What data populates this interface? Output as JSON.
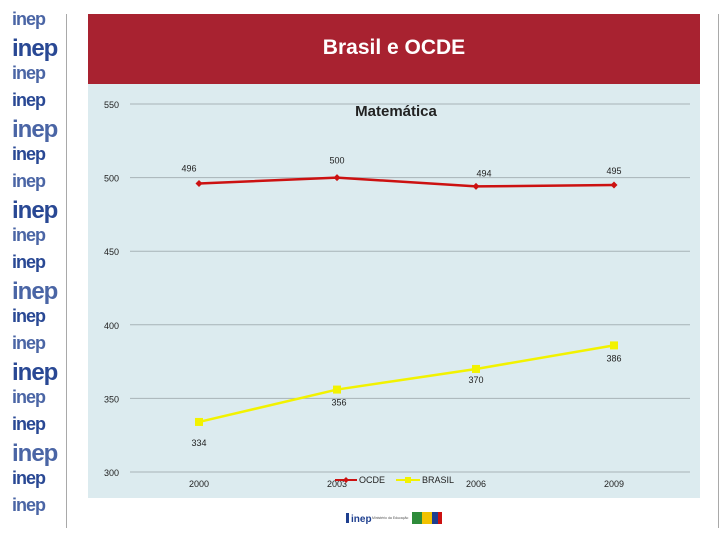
{
  "slide": {
    "title": "Brasil e OCDE",
    "sidebar_watermark": "inep"
  },
  "chart_data": {
    "type": "line",
    "title": "Matemática",
    "xlabel": "",
    "ylabel": "",
    "categories": [
      "2000",
      "2003",
      "2006",
      "2009"
    ],
    "ylim": [
      300,
      550
    ],
    "yticks": [
      300,
      350,
      400,
      450,
      500,
      550
    ],
    "grid": true,
    "legend_position": "bottom-center",
    "series": [
      {
        "name": "OCDE",
        "values": [
          496,
          500,
          494,
          495
        ],
        "color": "#cc1111"
      },
      {
        "name": "BRASIL",
        "values": [
          334,
          356,
          370,
          386
        ],
        "color": "#f2f200"
      }
    ]
  },
  "footer": {
    "logo_text": "inep",
    "ministry_text": "Ministério da Educação",
    "accent_colors": [
      "#1e3f8f",
      "#2e8b3a",
      "#f2c200",
      "#cc1111"
    ]
  }
}
